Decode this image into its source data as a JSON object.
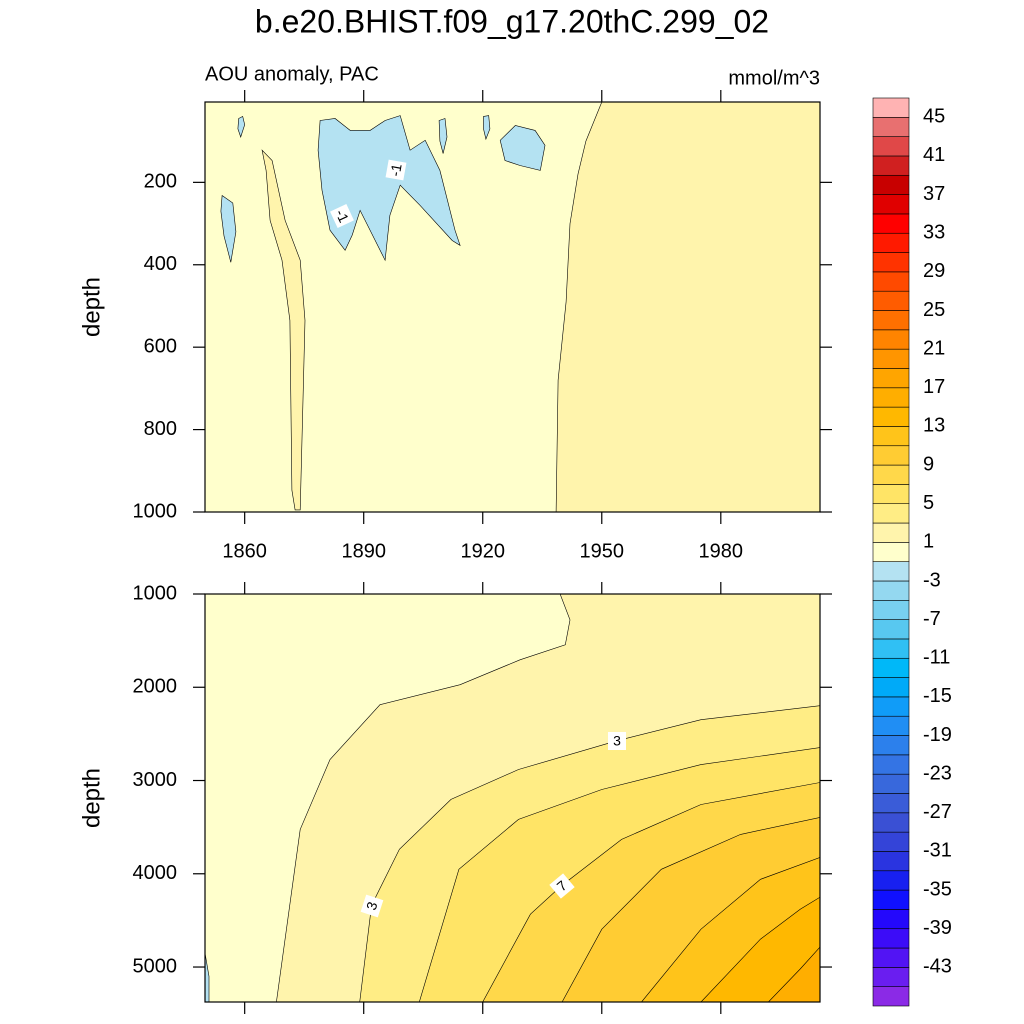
{
  "chart_data": [
    {
      "type": "contour",
      "title": "b.e20.BHIST.f09_g17.20thC.299_02",
      "subtitle_left": "AOU anomaly, PAC",
      "subtitle_right": "mmol/m^3",
      "ylabel": "depth",
      "xlim": [
        1850,
        2005
      ],
      "xticks": [
        1860,
        1890,
        1920,
        1950,
        1980
      ],
      "ylim": [
        5,
        1000
      ],
      "yticks": [
        200,
        400,
        600,
        800,
        1000
      ],
      "background_level": -1,
      "contours": [
        {
          "level": 1,
          "x": [
            1938.5,
            1939,
            1941,
            1942,
            1944,
            1946,
            1950,
            2005,
            2005
          ],
          "y": [
            1000,
            680,
            490,
            300,
            180,
            100,
            5,
            5,
            1000
          ]
        },
        {
          "level": 1,
          "x": [
            1864.4,
            1866.9,
            1870.2,
            1874,
            1875.2,
            1874.7,
            1874,
            1872.7,
            1871.9,
            1871.4,
            1869.4,
            1866.4,
            1865.4
          ],
          "y": [
            122,
            147,
            292,
            389,
            535,
            728,
            995,
            995,
            947,
            535,
            389,
            292,
            171
          ]
        },
        {
          "level": -3,
          "x": [
            1878.5,
            1879,
            1882.8,
            1886.6,
            1891.6,
            1895.4,
            1899.2,
            1901.7,
            1905.5,
            1909.2,
            1913,
            1914.3,
            1912.3,
            1904.2,
            1899.2,
            1896.6,
            1895.4,
            1892.9,
            1889.1,
            1887.1,
            1885.3,
            1881.5,
            1879.5
          ],
          "y": [
            122,
            50,
            45,
            74,
            74,
            50,
            38,
            122,
            98,
            171,
            316,
            353,
            341,
            256,
            207,
            280,
            389,
            341,
            268,
            328,
            365,
            316,
            219
          ]
        },
        {
          "level": -3,
          "x": [
            1854.3,
            1857,
            1857.8,
            1856.5,
            1854.8,
            1854
          ],
          "y": [
            232,
            250,
            320,
            394,
            330,
            270
          ]
        },
        {
          "level": -3,
          "x": [
            1924.4,
            1928.2,
            1933.2,
            1935.7,
            1934.5,
            1929.4,
            1925.6
          ],
          "y": [
            98,
            62,
            74,
            110,
            171,
            159,
            147
          ]
        },
        {
          "level": -3,
          "x": [
            1858.5,
            1859.5,
            1860,
            1859,
            1858.3
          ],
          "y": [
            45,
            40,
            60,
            90,
            70
          ]
        },
        {
          "level": -3,
          "x": [
            1909,
            1910.5,
            1911,
            1910,
            1909.2
          ],
          "y": [
            50,
            45,
            90,
            130,
            100
          ]
        },
        {
          "level": -3,
          "x": [
            1920.2,
            1921.5,
            1921.8,
            1920.8,
            1920.2
          ],
          "y": [
            40,
            38,
            70,
            95,
            70
          ]
        }
      ],
      "contour_labels": [
        -1,
        -1
      ],
      "colorbar": {
        "lim": [
          -47,
          47
        ],
        "ticks": [
          45,
          41,
          37,
          33,
          29,
          25,
          21,
          17,
          13,
          9,
          5,
          1,
          -3,
          -7,
          -11,
          -15,
          -19,
          -23,
          -27,
          -31,
          -35,
          -39,
          -43
        ],
        "colors": [
          "#8b2ae6",
          "#6a1ef0",
          "#5214f4",
          "#3c0cf8",
          "#2408fc",
          "#1010ff",
          "#1820f0",
          "#2a34e0",
          "#3444d8",
          "#3a50d4",
          "#3a5cd8",
          "#3868dc",
          "#3474e4",
          "#2c80ec",
          "#208ef4",
          "#109cf8",
          "#00aaf8",
          "#00b8f8",
          "#30c0f4",
          "#58c8f0",
          "#78d0f0",
          "#94d8f0",
          "#b4e2f2",
          "#ffffcc",
          "#fff4ac",
          "#ffed85",
          "#ffe466",
          "#ffd84a",
          "#ffcc33",
          "#ffc41a",
          "#ffb800",
          "#ffae00",
          "#ffa500",
          "#ff9500",
          "#ff8400",
          "#ff7000",
          "#ff5c00",
          "#ff4a00",
          "#ff3300",
          "#ff1a00",
          "#ff0000",
          "#e00000",
          "#c80000",
          "#d02020",
          "#e04848",
          "#e87070",
          "#ffb3b3"
        ]
      }
    },
    {
      "type": "contour",
      "ylabel": "depth",
      "xlim": [
        1850,
        2005
      ],
      "xticks": [
        1860,
        1890,
        1920,
        1950,
        1980
      ],
      "ylim": [
        1000,
        5375
      ],
      "yticks": [
        1000,
        2000,
        3000,
        4000,
        5000
      ],
      "background_level": 1,
      "contours": [
        {
          "level": -1,
          "x": [
            1850,
            1939.5,
            1942,
            1940.8,
            1929.4,
            1914.3,
            1894.1,
            1881.5,
            1874,
            1868,
            1850
          ],
          "y": [
            1000,
            1000,
            1278,
            1545,
            1706,
            1973,
            2187,
            2775,
            3524,
            5375,
            5375
          ]
        },
        {
          "level": 3,
          "x": [
            1889,
            1892,
            1899,
            1912,
            1929,
            1954,
            1975,
            2005,
            2005
          ],
          "y": [
            5375,
            4337,
            3738,
            3203,
            2882,
            2572,
            2348,
            2198,
            5375
          ]
        },
        {
          "level": 5,
          "x": [
            1904,
            1914,
            1929,
            1950,
            1975,
            2005,
            2005
          ],
          "y": [
            5375,
            3952,
            3417,
            3096,
            2829,
            2647,
            5375
          ]
        },
        {
          "level": 7,
          "x": [
            1920,
            1932,
            1940,
            1955,
            1975,
            2005,
            2005
          ],
          "y": [
            5375,
            4433,
            4123,
            3631,
            3257,
            3021,
            5375
          ]
        },
        {
          "level": 9,
          "x": [
            1940,
            1950,
            1965,
            1985,
            2005,
            2005
          ],
          "y": [
            5375,
            4594,
            3952,
            3578,
            3396,
            5375
          ]
        },
        {
          "level": 11,
          "x": [
            1960,
            1975,
            1990,
            2005,
            2005
          ],
          "y": [
            5375,
            4594,
            4059,
            3824,
            5375
          ]
        },
        {
          "level": 13,
          "x": [
            1975,
            1990,
            2000,
            2005,
            2005
          ],
          "y": [
            5375,
            4701,
            4380,
            4251,
            5375
          ]
        },
        {
          "level": 15,
          "x": [
            1992,
            2000,
            2005,
            2005
          ],
          "y": [
            5375,
            5021,
            4786,
            5375
          ]
        },
        {
          "level": -3,
          "x": [
            1850,
            1851,
            1851,
            1850
          ],
          "y": [
            4850,
            5100,
            5375,
            5375
          ]
        }
      ],
      "contour_labels": [
        3,
        7,
        3
      ]
    }
  ]
}
